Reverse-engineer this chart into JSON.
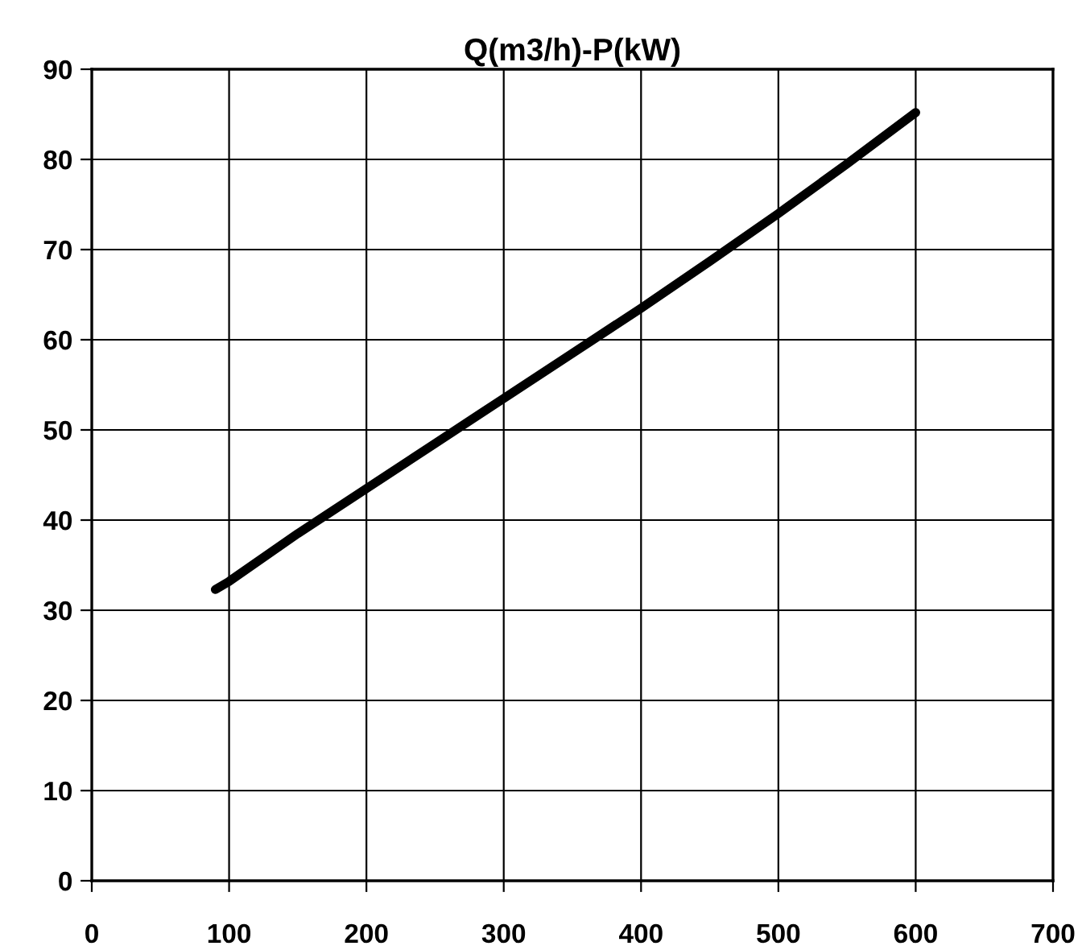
{
  "chart_data": {
    "type": "line",
    "title": "Q(m3/h)-P(kW)",
    "x": [
      90,
      100,
      150,
      200,
      250,
      300,
      350,
      400,
      450,
      500,
      550,
      600
    ],
    "series": [
      {
        "color": "#000000",
        "values": [
          32.3,
          33.2,
          38.5,
          43.5,
          48.5,
          53.5,
          58.5,
          63.5,
          68.7,
          74,
          79.5,
          85.2
        ]
      }
    ],
    "xlim": [
      0,
      700
    ],
    "xticks": [
      0,
      100,
      200,
      300,
      400,
      500,
      600,
      700
    ],
    "ylim": [
      0,
      90
    ],
    "yticks": [
      0,
      10,
      20,
      30,
      40,
      50,
      60,
      70,
      80,
      90
    ],
    "grid": true,
    "marker": "none",
    "line_style": "solid"
  }
}
